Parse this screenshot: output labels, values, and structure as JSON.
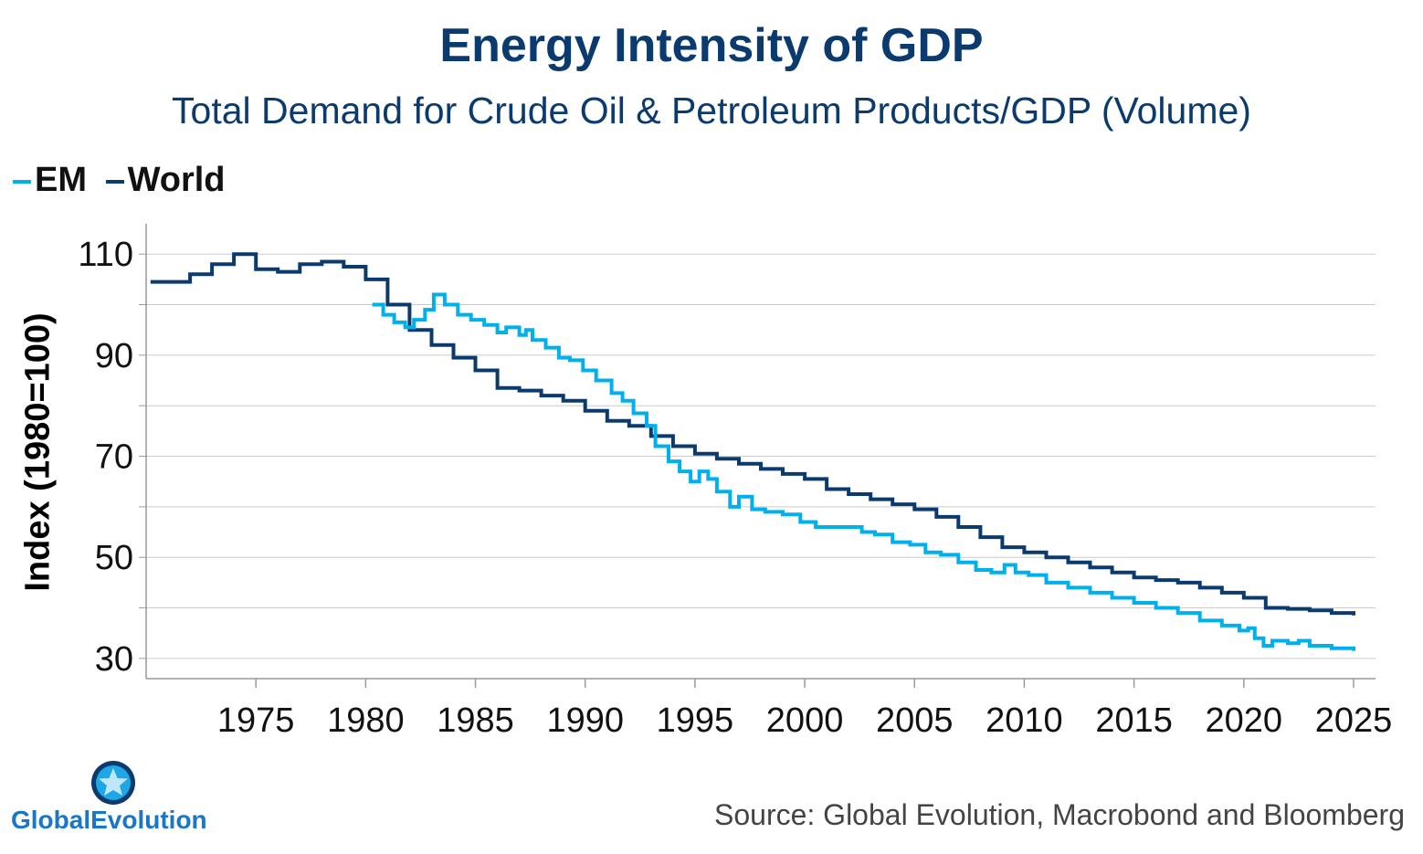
{
  "title": "Energy Intensity of GDP",
  "subtitle": "Total Demand for Crude Oil & Petroleum Products/GDP (Volume)",
  "source": "Source: Global Evolution, Macrobond and Bloomberg",
  "logo_text": "GlobalEvolution",
  "colors": {
    "em": "#00b0ec",
    "world": "#0b3a6e",
    "grid": "#cccccc",
    "axis": "#999999"
  },
  "chart_data": {
    "type": "line",
    "title": "Energy Intensity of GDP",
    "subtitle": "Total Demand for Crude Oil & Petroleum Products/GDP (Volume)",
    "xlabel": "",
    "ylabel": "Index (1980=100)",
    "xlim": [
      1970,
      2026
    ],
    "ylim": [
      26,
      116
    ],
    "x_ticks": [
      1975,
      1980,
      1985,
      1990,
      1995,
      2000,
      2005,
      2010,
      2015,
      2020,
      2025
    ],
    "y_ticks": [
      30,
      50,
      70,
      90,
      110
    ],
    "grid": true,
    "legend_position": "top-left",
    "series": [
      {
        "name": "EM",
        "color": "#00b0ec",
        "points": [
          [
            1980.3,
            100.0
          ],
          [
            1980.8,
            98.0
          ],
          [
            1981.3,
            96.5
          ],
          [
            1981.8,
            95.5
          ],
          [
            1982.2,
            97.0
          ],
          [
            1982.7,
            99.0
          ],
          [
            1983.1,
            102.0
          ],
          [
            1983.6,
            100.0
          ],
          [
            1984.2,
            98.0
          ],
          [
            1984.8,
            97.0
          ],
          [
            1985.4,
            96.0
          ],
          [
            1986.0,
            94.5
          ],
          [
            1986.4,
            95.5
          ],
          [
            1987.0,
            94.0
          ],
          [
            1987.3,
            95.0
          ],
          [
            1987.6,
            93.0
          ],
          [
            1988.2,
            91.5
          ],
          [
            1988.8,
            89.5
          ],
          [
            1989.3,
            89.0
          ],
          [
            1989.9,
            87.0
          ],
          [
            1990.5,
            85.0
          ],
          [
            1991.2,
            82.5
          ],
          [
            1991.7,
            81.0
          ],
          [
            1992.2,
            78.5
          ],
          [
            1992.8,
            76.0
          ],
          [
            1993.2,
            72.0
          ],
          [
            1993.8,
            69.0
          ],
          [
            1994.3,
            67.0
          ],
          [
            1994.8,
            65.0
          ],
          [
            1995.2,
            67.0
          ],
          [
            1995.6,
            65.5
          ],
          [
            1996.0,
            63.0
          ],
          [
            1996.6,
            60.0
          ],
          [
            1997.0,
            62.0
          ],
          [
            1997.6,
            59.5
          ],
          [
            1998.2,
            59.0
          ],
          [
            1999.0,
            58.5
          ],
          [
            1999.8,
            57.0
          ],
          [
            2000.5,
            56.0
          ],
          [
            2001.2,
            56.0
          ],
          [
            2002.0,
            56.0
          ],
          [
            2002.6,
            55.0
          ],
          [
            2003.2,
            54.5
          ],
          [
            2004.0,
            53.0
          ],
          [
            2004.8,
            52.5
          ],
          [
            2005.5,
            51.0
          ],
          [
            2006.2,
            50.5
          ],
          [
            2007.0,
            49.0
          ],
          [
            2007.8,
            47.5
          ],
          [
            2008.5,
            47.0
          ],
          [
            2009.1,
            48.5
          ],
          [
            2009.6,
            47.0
          ],
          [
            2010.2,
            46.5
          ],
          [
            2011.0,
            45.0
          ],
          [
            2012.0,
            44.0
          ],
          [
            2013.0,
            43.0
          ],
          [
            2014.0,
            42.0
          ],
          [
            2015.0,
            41.0
          ],
          [
            2016.0,
            40.0
          ],
          [
            2017.0,
            39.0
          ],
          [
            2018.0,
            37.5
          ],
          [
            2019.0,
            36.5
          ],
          [
            2019.8,
            35.5
          ],
          [
            2020.2,
            36.0
          ],
          [
            2020.5,
            34.0
          ],
          [
            2020.9,
            32.5
          ],
          [
            2021.3,
            33.5
          ],
          [
            2022.0,
            33.0
          ],
          [
            2022.5,
            33.5
          ],
          [
            2023.0,
            32.5
          ],
          [
            2024.0,
            32.0
          ],
          [
            2025.0,
            31.5
          ]
        ]
      },
      {
        "name": "World",
        "color": "#0b3a6e",
        "points": [
          [
            1970.2,
            104.5
          ],
          [
            1971.0,
            104.5
          ],
          [
            1972.0,
            106.0
          ],
          [
            1973.0,
            108.0
          ],
          [
            1974.0,
            110.0
          ],
          [
            1975.0,
            107.0
          ],
          [
            1976.0,
            106.5
          ],
          [
            1977.0,
            108.0
          ],
          [
            1978.0,
            108.5
          ],
          [
            1979.0,
            107.5
          ],
          [
            1980.0,
            105.0
          ],
          [
            1981.0,
            100.0
          ],
          [
            1982.0,
            95.0
          ],
          [
            1983.0,
            92.0
          ],
          [
            1984.0,
            89.5
          ],
          [
            1985.0,
            87.0
          ],
          [
            1986.0,
            83.5
          ],
          [
            1987.0,
            83.0
          ],
          [
            1988.0,
            82.0
          ],
          [
            1989.0,
            81.0
          ],
          [
            1990.0,
            79.0
          ],
          [
            1991.0,
            77.0
          ],
          [
            1992.0,
            76.0
          ],
          [
            1993.0,
            74.0
          ],
          [
            1994.0,
            72.0
          ],
          [
            1995.0,
            70.5
          ],
          [
            1996.0,
            69.5
          ],
          [
            1997.0,
            68.5
          ],
          [
            1998.0,
            67.5
          ],
          [
            1999.0,
            66.5
          ],
          [
            2000.0,
            65.5
          ],
          [
            2001.0,
            63.5
          ],
          [
            2002.0,
            62.5
          ],
          [
            2003.0,
            61.5
          ],
          [
            2004.0,
            60.5
          ],
          [
            2005.0,
            59.5
          ],
          [
            2006.0,
            58.0
          ],
          [
            2007.0,
            56.0
          ],
          [
            2008.0,
            54.0
          ],
          [
            2009.0,
            52.0
          ],
          [
            2010.0,
            51.0
          ],
          [
            2011.0,
            50.0
          ],
          [
            2012.0,
            49.0
          ],
          [
            2013.0,
            48.0
          ],
          [
            2014.0,
            47.0
          ],
          [
            2015.0,
            46.0
          ],
          [
            2016.0,
            45.5
          ],
          [
            2017.0,
            45.0
          ],
          [
            2018.0,
            44.0
          ],
          [
            2019.0,
            43.0
          ],
          [
            2020.0,
            42.0
          ],
          [
            2021.0,
            40.0
          ],
          [
            2022.0,
            39.8
          ],
          [
            2023.0,
            39.5
          ],
          [
            2024.0,
            39.0
          ],
          [
            2025.0,
            38.5
          ]
        ]
      }
    ]
  }
}
